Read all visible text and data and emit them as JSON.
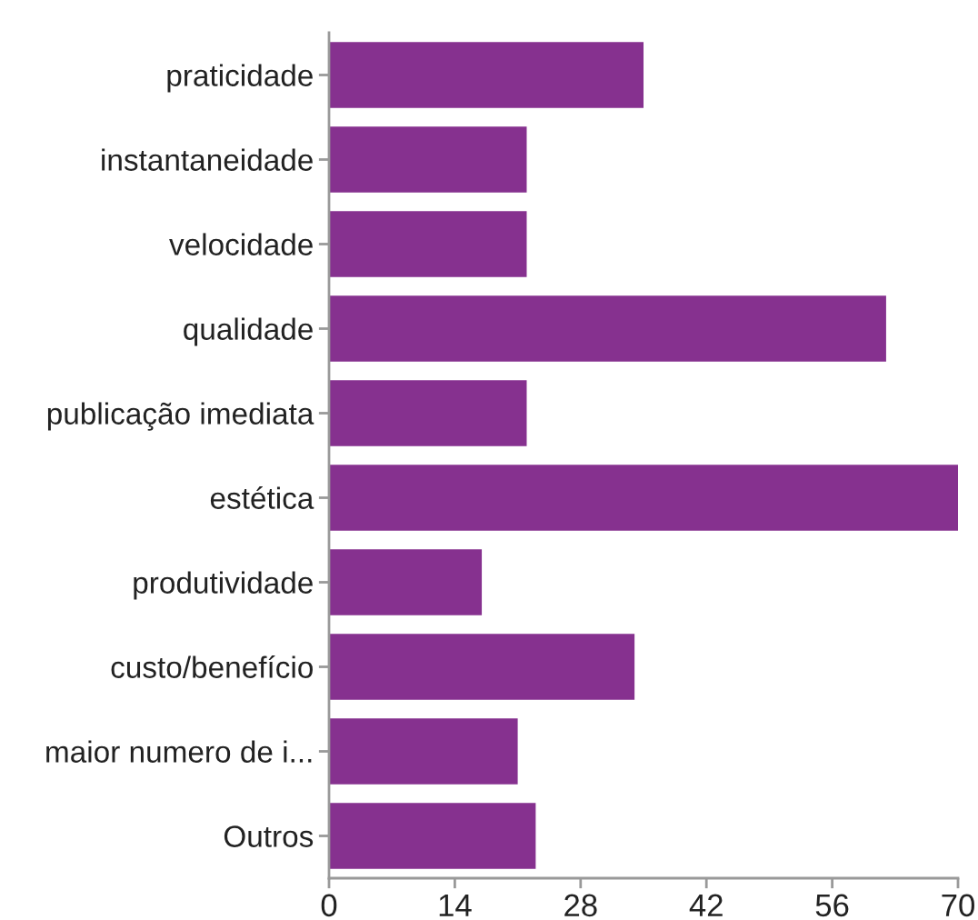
{
  "chart_data": {
    "type": "bar",
    "orientation": "horizontal",
    "categories": [
      "praticidade",
      "instantaneidade",
      "velocidade",
      "qualidade",
      "publicação imediata",
      "estética",
      "produtividade",
      "custo/benefício",
      "maior numero de i...",
      "Outros"
    ],
    "values": [
      35,
      22,
      22,
      62,
      22,
      70,
      17,
      34,
      21,
      23
    ],
    "color": "#86318f",
    "xlim": [
      0,
      70
    ],
    "xticks": [
      0,
      14,
      28,
      42,
      56,
      70
    ]
  }
}
